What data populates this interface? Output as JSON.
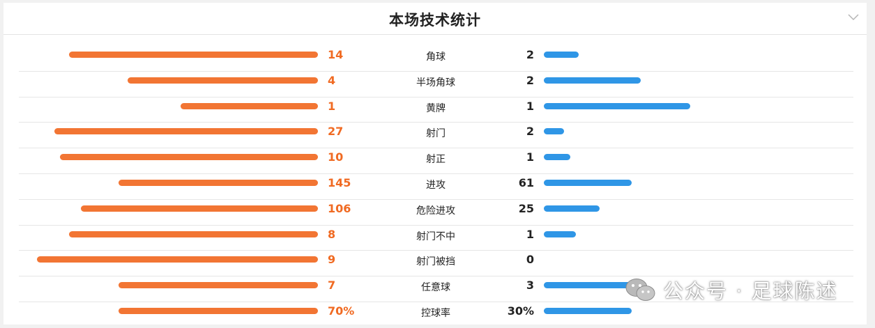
{
  "header": {
    "title": "本场技术统计",
    "collapse_icon": "chevron-down-icon"
  },
  "colors": {
    "home": "#f27533",
    "away": "#2f96e6"
  },
  "stats": [
    {
      "label": "角球",
      "home": "14",
      "away": "2",
      "home_bar": 0.85,
      "away_bar": 0.12
    },
    {
      "label": "半场角球",
      "home": "4",
      "away": "2",
      "home_bar": 0.65,
      "away_bar": 0.33
    },
    {
      "label": "黄牌",
      "home": "1",
      "away": "1",
      "home_bar": 0.47,
      "away_bar": 0.5
    },
    {
      "label": "射门",
      "home": "27",
      "away": "2",
      "home_bar": 0.9,
      "away_bar": 0.07
    },
    {
      "label": "射正",
      "home": "10",
      "away": "1",
      "home_bar": 0.88,
      "away_bar": 0.09
    },
    {
      "label": "进攻",
      "home": "145",
      "away": "61",
      "home_bar": 0.68,
      "away_bar": 0.3
    },
    {
      "label": "危险进攻",
      "home": "106",
      "away": "25",
      "home_bar": 0.81,
      "away_bar": 0.19
    },
    {
      "label": "射门不中",
      "home": "8",
      "away": "1",
      "home_bar": 0.85,
      "away_bar": 0.11
    },
    {
      "label": "射门被挡",
      "home": "9",
      "away": "0",
      "home_bar": 0.96,
      "away_bar": 0.0
    },
    {
      "label": "任意球",
      "home": "7",
      "away": "3",
      "home_bar": 0.68,
      "away_bar": 0.3
    },
    {
      "label": "控球率",
      "home": "70%",
      "away": "30%",
      "home_bar": 0.68,
      "away_bar": 0.3
    }
  ],
  "watermark": {
    "text": "公众号 · 足球陈述",
    "icon": "wechat-icon"
  }
}
